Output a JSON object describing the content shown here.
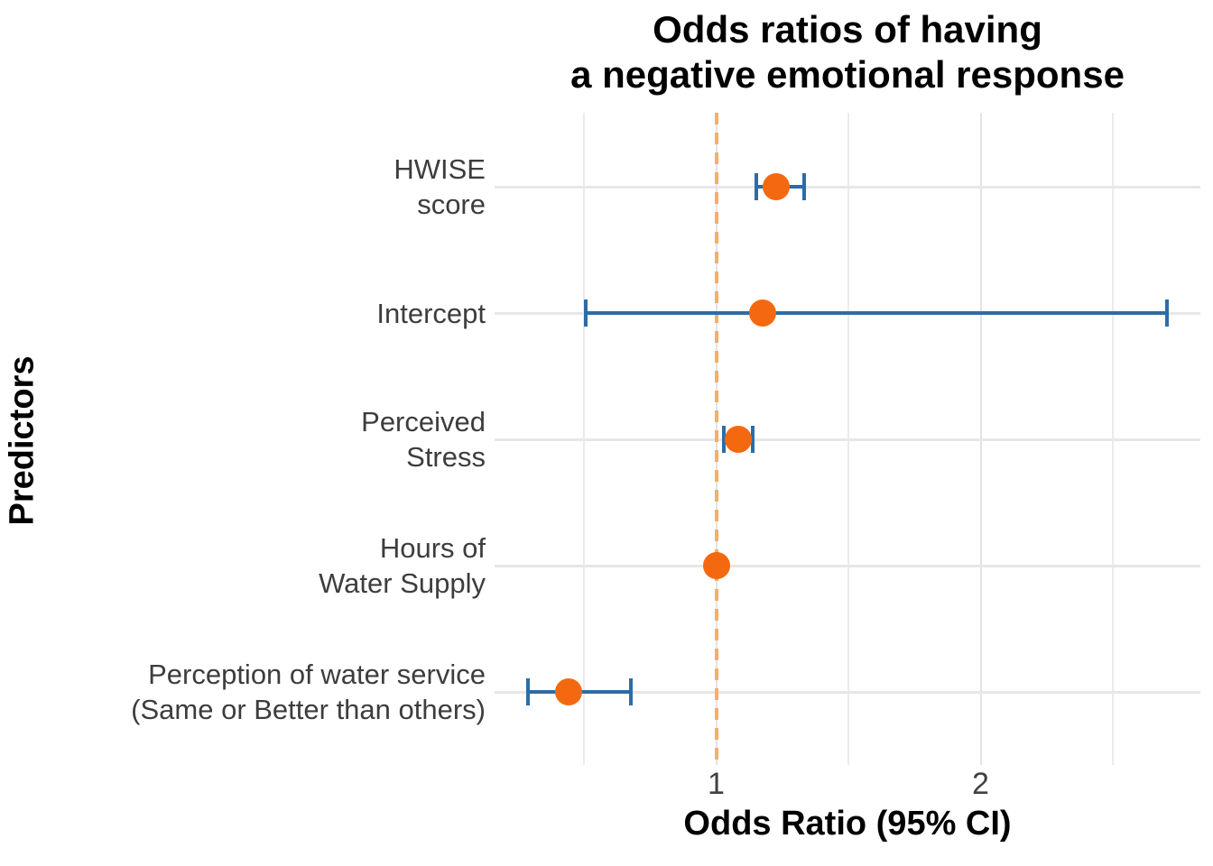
{
  "figure": {
    "title_lines": [
      "Odds ratios of having",
      "a negative emotional response"
    ],
    "x_axis_label": "Odds Ratio (95% CI)",
    "y_axis_label": "Predictors"
  },
  "chart_data": {
    "type": "scatter",
    "subtype": "forest-plot-dot-whisker",
    "title": "Odds ratios of having a negative emotional response",
    "xlabel": "Odds Ratio (95% CI)",
    "ylabel": "Predictors",
    "x_scale": "log",
    "x_ticks": [
      1,
      2
    ],
    "x_minor_gridlines": [
      0.7071,
      1.4142,
      2.8284
    ],
    "xlim": [
      0.57,
      3.56
    ],
    "reference_line_x": 1.0,
    "grid": true,
    "legend": "none",
    "categories": [
      "HWISE score",
      "Intercept",
      "Perceived Stress",
      "Hours of Water Supply",
      "Perception of water service (Same or Better than others)"
    ],
    "series": [
      {
        "predictor": "HWISE score",
        "label_lines": [
          "HWISE",
          "score"
        ],
        "odds_ratio": 1.17,
        "ci_low": 1.11,
        "ci_high": 1.26
      },
      {
        "predictor": "Intercept",
        "label_lines": [
          "Intercept"
        ],
        "odds_ratio": 1.13,
        "ci_low": 0.71,
        "ci_high": 3.26
      },
      {
        "predictor": "Perceived Stress",
        "label_lines": [
          "Perceived",
          "Stress"
        ],
        "odds_ratio": 1.06,
        "ci_low": 1.02,
        "ci_high": 1.1
      },
      {
        "predictor": "Hours of Water Supply",
        "label_lines": [
          "Hours of",
          "Water Supply"
        ],
        "odds_ratio": 1.0,
        "ci_low": 1.0,
        "ci_high": 1.0
      },
      {
        "predictor": "Perception of water service (Same or Better than others)",
        "label_lines": [
          "Perception of water service",
          "(Same or Better than others)"
        ],
        "odds_ratio": 0.68,
        "ci_low": 0.61,
        "ci_high": 0.8
      }
    ],
    "colors": {
      "point": "#F4690F",
      "ci": "#2D6CA6",
      "reference_line": "#FBAD63",
      "gridline_major": "#E3E3E3",
      "gridline_minor": "#EBEBEB",
      "row_line": "#E7E7E7",
      "label_text": "#3D3D3D",
      "tick_text": "#404040",
      "title_text": "#000000",
      "background": "#FFFFFF"
    }
  }
}
